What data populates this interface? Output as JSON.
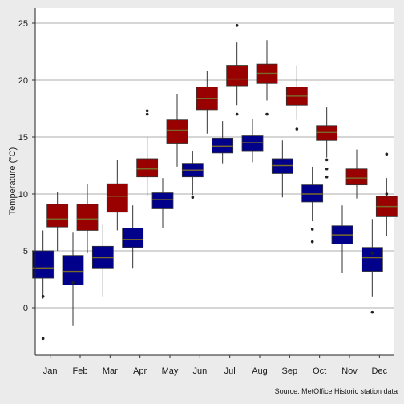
{
  "chart_data": {
    "type": "boxplot",
    "title": "",
    "xlabel": "",
    "ylabel": "Temperature (°C)",
    "ylim": [
      -4,
      26
    ],
    "yticks": [
      0,
      5,
      10,
      15,
      20,
      25
    ],
    "grid": "horizontal major",
    "legend": "none",
    "caption": "Source: MetOffice Historic station data",
    "categories": [
      "Jan",
      "Feb",
      "Mar",
      "Apr",
      "May",
      "Jun",
      "Jul",
      "Aug",
      "Sep",
      "Oct",
      "Nov",
      "Dec"
    ],
    "series": [
      {
        "color": "#990000",
        "boxes": [
          {
            "whisker_low": 5.0,
            "q1": 7.1,
            "median": 7.8,
            "q3": 9.1,
            "whisker_high": 10.2,
            "outliers": []
          },
          {
            "whisker_low": 4.8,
            "q1": 6.8,
            "median": 7.8,
            "q3": 9.1,
            "whisker_high": 10.9,
            "outliers": []
          },
          {
            "whisker_low": 6.8,
            "q1": 8.4,
            "median": 9.8,
            "q3": 10.9,
            "whisker_high": 13.0,
            "outliers": []
          },
          {
            "whisker_low": 9.8,
            "q1": 11.5,
            "median": 12.2,
            "q3": 13.1,
            "whisker_high": 15.0,
            "outliers": [
              17.0,
              17.3
            ]
          },
          {
            "whisker_low": 12.4,
            "q1": 14.4,
            "median": 15.6,
            "q3": 16.5,
            "whisker_high": 18.8,
            "outliers": []
          },
          {
            "whisker_low": 15.3,
            "q1": 17.4,
            "median": 18.4,
            "q3": 19.4,
            "whisker_high": 20.8,
            "outliers": []
          },
          {
            "whisker_low": 17.8,
            "q1": 19.5,
            "median": 20.1,
            "q3": 21.3,
            "whisker_high": 23.3,
            "outliers": [
              24.8,
              17.0
            ]
          },
          {
            "whisker_low": 18.2,
            "q1": 19.7,
            "median": 20.6,
            "q3": 21.4,
            "whisker_high": 23.5,
            "outliers": [
              17.0
            ]
          },
          {
            "whisker_low": 16.5,
            "q1": 17.8,
            "median": 18.6,
            "q3": 19.4,
            "whisker_high": 21.3,
            "outliers": [
              15.7
            ]
          },
          {
            "whisker_low": 13.2,
            "q1": 14.7,
            "median": 15.4,
            "q3": 16.0,
            "whisker_high": 17.6,
            "outliers": [
              13.0,
              11.5,
              12.2
            ]
          },
          {
            "whisker_low": 9.6,
            "q1": 10.8,
            "median": 11.4,
            "q3": 12.2,
            "whisker_high": 13.9,
            "outliers": []
          },
          {
            "whisker_low": 6.3,
            "q1": 8.0,
            "median": 8.9,
            "q3": 9.8,
            "whisker_high": 11.4,
            "outliers": [
              10.0,
              13.5
            ]
          }
        ]
      },
      {
        "color": "#00008b",
        "boxes": [
          {
            "whisker_low": 0.8,
            "q1": 2.6,
            "median": 3.5,
            "q3": 5.0,
            "whisker_high": 6.8,
            "outliers": [
              1.0,
              -2.7
            ]
          },
          {
            "whisker_low": -1.6,
            "q1": 2.0,
            "median": 3.2,
            "q3": 4.6,
            "whisker_high": 6.6,
            "outliers": [
              2.2
            ]
          },
          {
            "whisker_low": 1.0,
            "q1": 3.5,
            "median": 4.4,
            "q3": 5.4,
            "whisker_high": 7.3,
            "outliers": []
          },
          {
            "whisker_low": 3.5,
            "q1": 5.3,
            "median": 6.0,
            "q3": 7.0,
            "whisker_high": 9.0,
            "outliers": []
          },
          {
            "whisker_low": 7.0,
            "q1": 8.7,
            "median": 9.5,
            "q3": 10.1,
            "whisker_high": 11.4,
            "outliers": []
          },
          {
            "whisker_low": 9.9,
            "q1": 11.5,
            "median": 12.1,
            "q3": 12.7,
            "whisker_high": 13.8,
            "outliers": [
              9.7
            ]
          },
          {
            "whisker_low": 12.7,
            "q1": 13.6,
            "median": 14.2,
            "q3": 14.9,
            "whisker_high": 16.4,
            "outliers": []
          },
          {
            "whisker_low": 12.8,
            "q1": 13.8,
            "median": 14.5,
            "q3": 15.1,
            "whisker_high": 16.6,
            "outliers": []
          },
          {
            "whisker_low": 9.7,
            "q1": 11.8,
            "median": 12.5,
            "q3": 13.1,
            "whisker_high": 14.7,
            "outliers": []
          },
          {
            "whisker_low": 7.6,
            "q1": 9.3,
            "median": 10.0,
            "q3": 10.8,
            "whisker_high": 12.4,
            "outliers": [
              6.9,
              5.8
            ]
          },
          {
            "whisker_low": 3.1,
            "q1": 5.6,
            "median": 6.4,
            "q3": 7.2,
            "whisker_high": 9.0,
            "outliers": []
          },
          {
            "whisker_low": 1.0,
            "q1": 3.2,
            "median": 4.4,
            "q3": 5.3,
            "whisker_high": 7.8,
            "outliers": [
              4.8,
              -0.4
            ]
          }
        ]
      }
    ]
  }
}
